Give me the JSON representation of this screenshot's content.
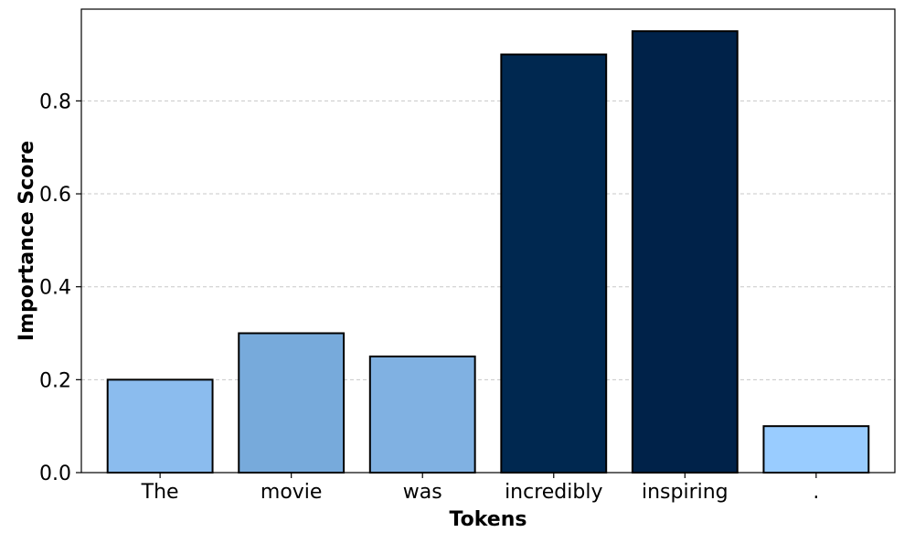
{
  "chart_data": {
    "type": "bar",
    "title": "",
    "xlabel": "Tokens",
    "ylabel": "Importance Score",
    "categories": [
      "The",
      "movie",
      "was",
      "incredibly",
      "inspiring",
      "."
    ],
    "values": [
      0.2,
      0.3,
      0.25,
      0.9,
      0.95,
      0.1
    ],
    "bar_colors": [
      "#8bbcee",
      "#77aadb",
      "#80b1e2",
      "#002850",
      "#002249",
      "#99ccff"
    ],
    "bar_edge_color": "#000000",
    "ylim": [
      0,
      1.0
    ],
    "yticks": [
      0.0,
      0.2,
      0.4,
      0.6,
      0.8
    ],
    "ytick_labels": [
      "0.0",
      "0.2",
      "0.4",
      "0.6",
      "0.8"
    ],
    "grid": "y-dashed",
    "grid_color": "#c8c8c8"
  }
}
